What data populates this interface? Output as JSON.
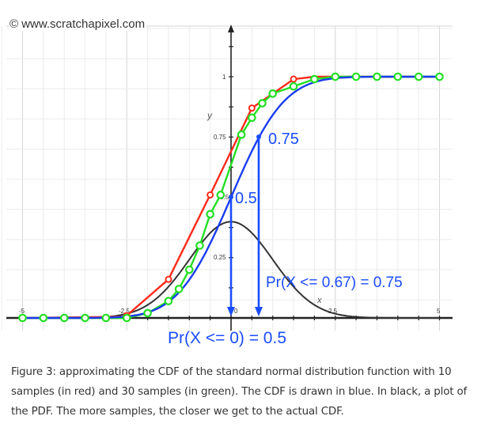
{
  "watermark": "© www.scratchapixel.com",
  "caption": "Figure 3: approximating the CDF of the standard normal distribution function with 10 samples (in red) and 30 samples (in green). The CDF is drawn in blue. In black, a plot of the PDF. The more samples, the closer we get to the actual CDF.",
  "annotations": {
    "label_075": "0.75",
    "label_05": "0.5",
    "pr_067": "Pr(X <= 0.67) = 0.75",
    "pr_0": "Pr(X <= 0) = 0.5"
  },
  "axis_labels": {
    "x": "x",
    "y": "y",
    "x_ticks": [
      "-5",
      "-2.5",
      "0",
      "2.5",
      "5"
    ],
    "y_ticks": [
      "0.25",
      "0.5",
      "0.75",
      "1"
    ]
  },
  "colors": {
    "cdf": "#1a3cf0",
    "samples_10": "#ff2a1a",
    "samples_30": "#22e022",
    "pdf": "#333333",
    "annotation": "#1a4cff",
    "grid": "#e6e6e6"
  },
  "chart_data": {
    "type": "line",
    "title": "",
    "xlabel": "x",
    "ylabel": "y",
    "xlim": [
      -5,
      5
    ],
    "ylim": [
      0,
      1
    ],
    "grid": true,
    "legend": "none (described in caption)",
    "series": [
      {
        "name": "CDF (blue)",
        "function": "standard normal CDF",
        "x": [
          -5,
          -2.5,
          -1,
          -0.5,
          0,
          0.5,
          0.67,
          1,
          2.5,
          5
        ],
        "y": [
          0.0,
          0.006,
          0.159,
          0.309,
          0.5,
          0.691,
          0.75,
          0.841,
          0.994,
          1.0
        ]
      },
      {
        "name": "PDF (black)",
        "function": "standard normal PDF",
        "x": [
          -5,
          -2.5,
          -1,
          0,
          1,
          2.5,
          5
        ],
        "y": [
          0.0,
          0.018,
          0.242,
          0.399,
          0.242,
          0.018,
          0.0
        ]
      },
      {
        "name": "10 samples (red)",
        "x": [
          -2.5,
          -1.5,
          -0.5,
          0.5,
          1.5
        ],
        "y": [
          0.01,
          0.16,
          0.51,
          0.87,
          0.99
        ]
      },
      {
        "name": "30 samples (green)",
        "x": [
          -5.0,
          -4.5,
          -4.0,
          -3.5,
          -3.0,
          -2.5,
          -2.0,
          -1.5,
          -1.25,
          -1.0,
          -0.75,
          -0.5,
          -0.25,
          0.25,
          0.5,
          0.75,
          1.0,
          1.5,
          2.0,
          2.5,
          3.0,
          3.5,
          4.0,
          4.5,
          5.0
        ],
        "y": [
          0.0,
          0.0,
          0.0,
          0.0,
          0.0,
          0.0,
          0.02,
          0.07,
          0.12,
          0.2,
          0.3,
          0.43,
          0.51,
          0.76,
          0.83,
          0.89,
          0.93,
          0.96,
          0.99,
          1.0,
          1.0,
          1.0,
          1.0,
          1.0,
          1.0
        ]
      }
    ],
    "annotations": [
      {
        "text": "0.75",
        "x": 0.67,
        "y": 0.75
      },
      {
        "text": "0.5",
        "x": 0,
        "y": 0.5
      },
      {
        "text": "Pr(X <= 0.67) = 0.75"
      },
      {
        "text": "Pr(X <= 0) = 0.5"
      }
    ]
  }
}
